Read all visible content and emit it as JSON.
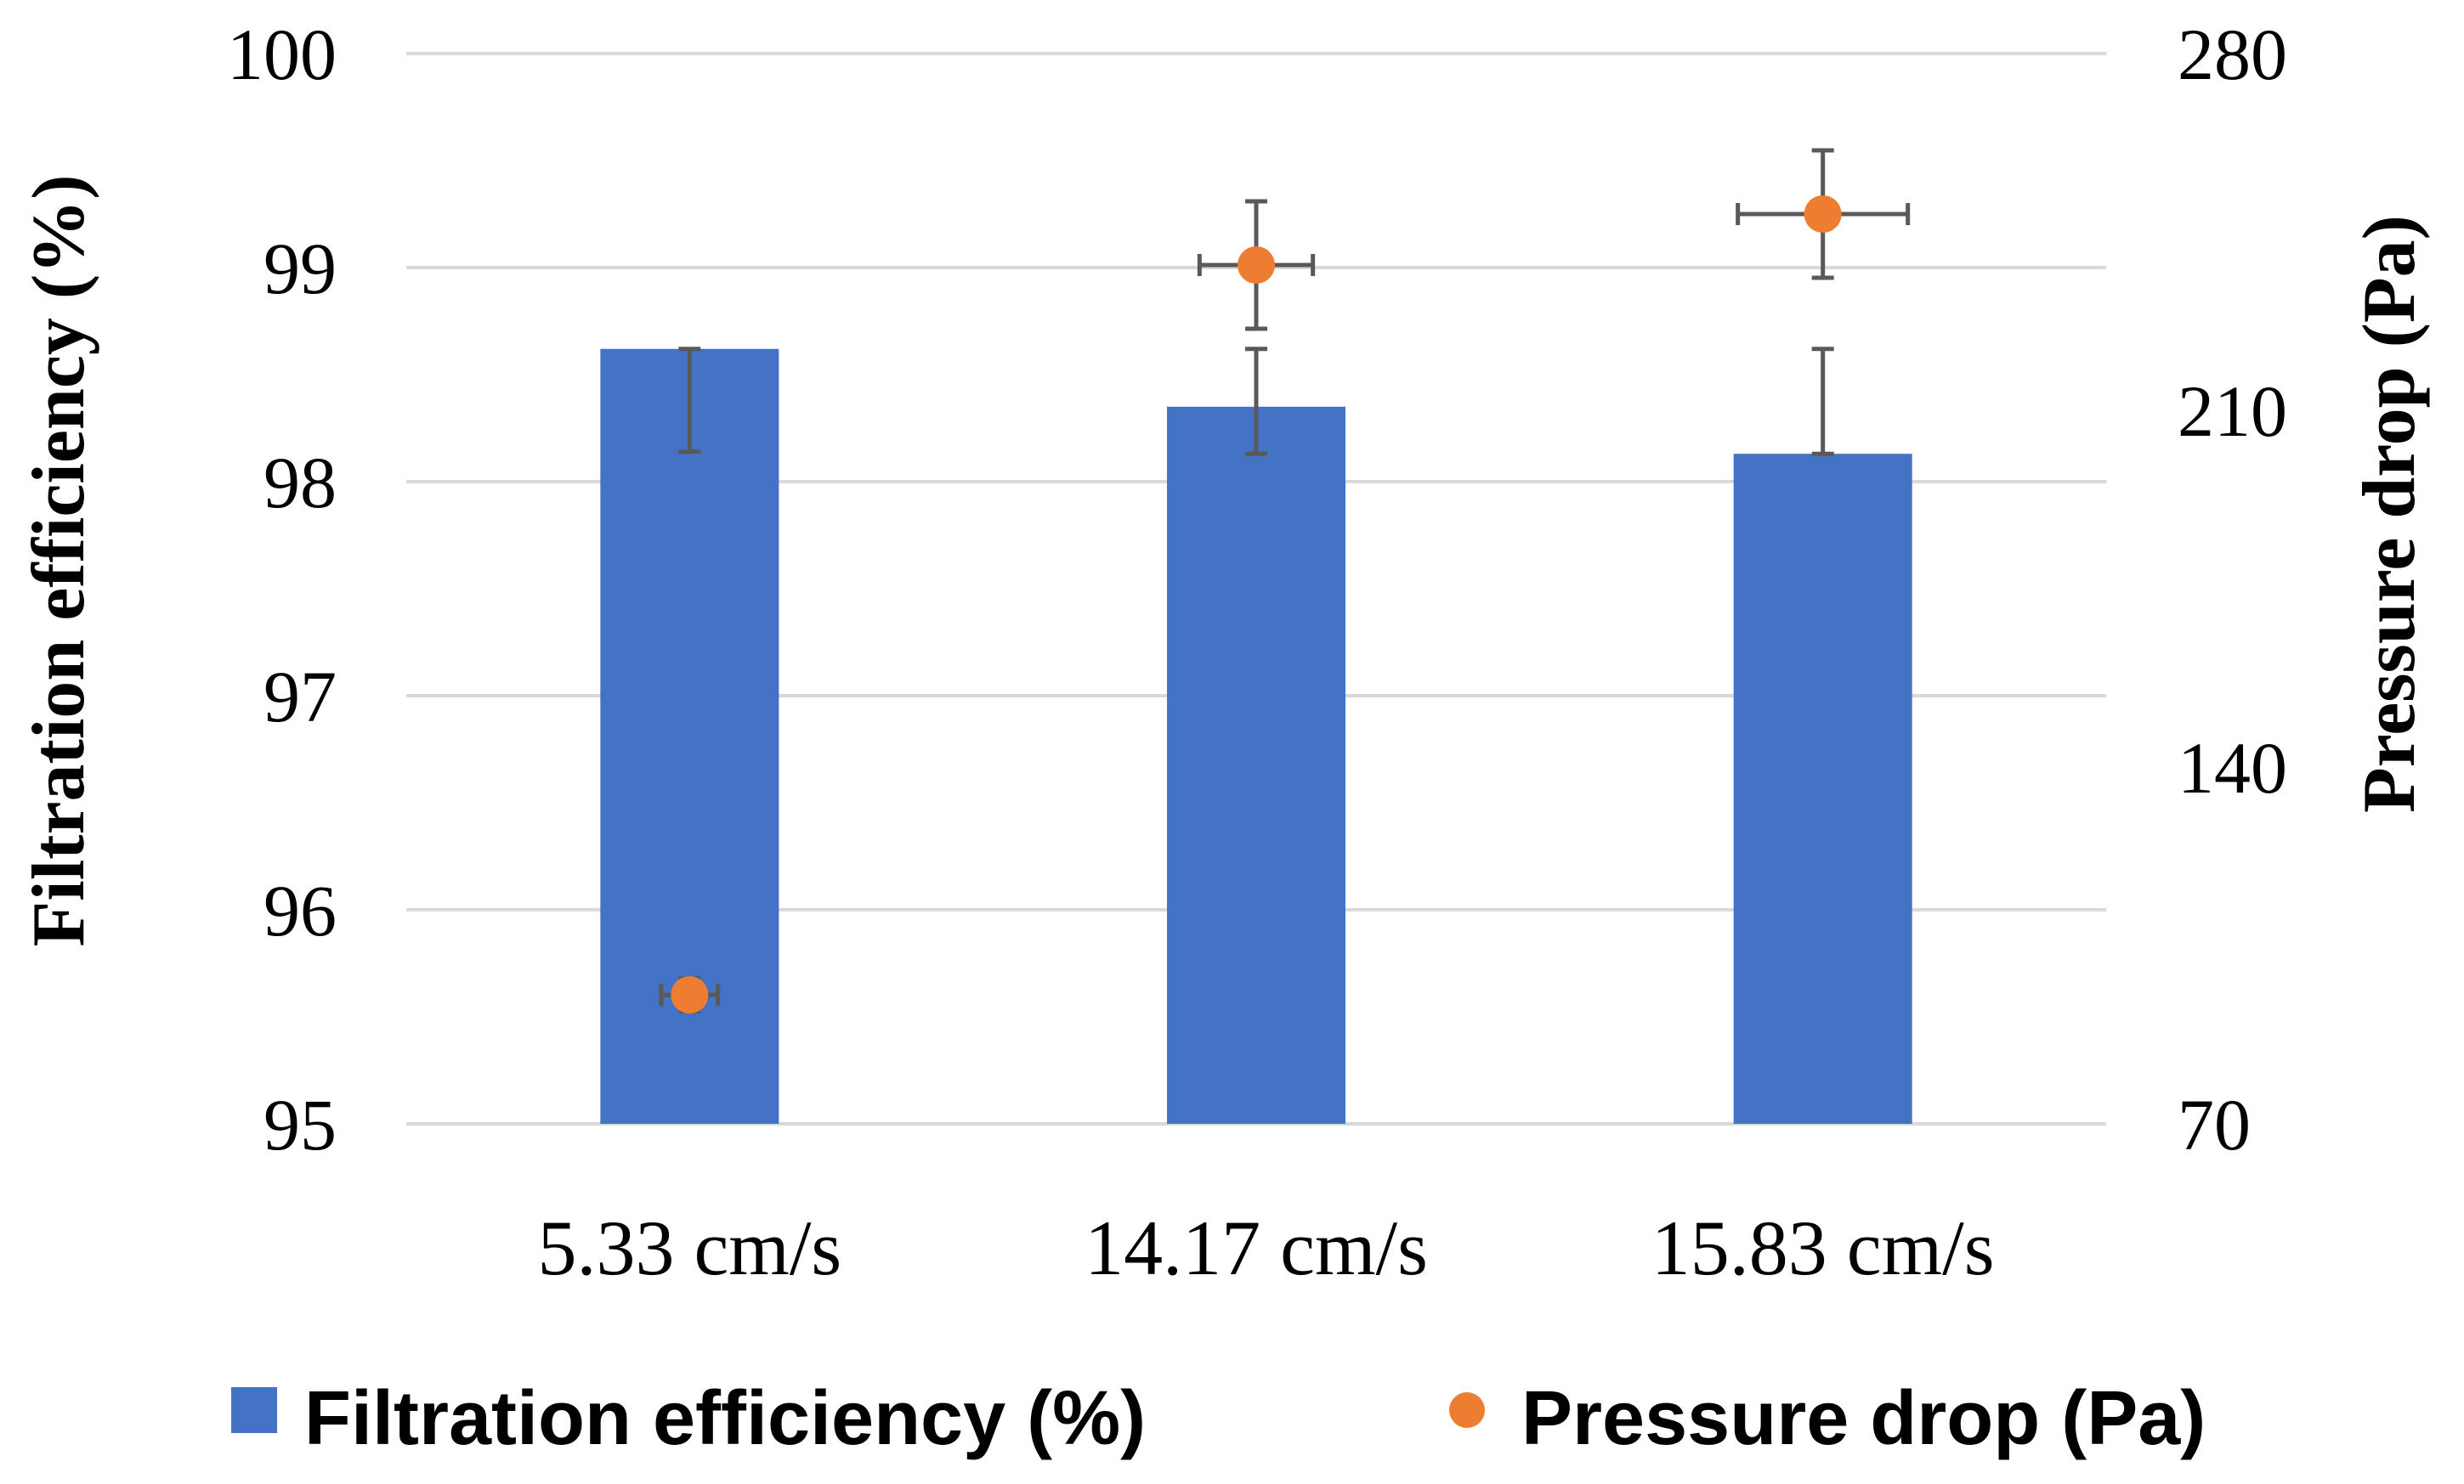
{
  "chart_data": {
    "type": "bar",
    "categories": [
      "5.33 cm/s",
      "14.17 cm/s",
      "15.83 cm/s"
    ],
    "series": [
      {
        "name": "Filtration efficiency (%)",
        "kind": "bar",
        "axis": "left",
        "values": [
          98.62,
          98.35,
          98.13
        ],
        "error_minus": [
          0.48,
          0.22,
          0.0
        ],
        "error_plus": [
          0.0,
          0.27,
          0.49
        ],
        "color": "#4472C4"
      },
      {
        "name": "Pressure drop (Pa)",
        "kind": "scatter",
        "axis": "right",
        "values": [
          95.3,
          238.5,
          248.5
        ],
        "y_error": [
          3.2,
          12.5,
          12.5
        ],
        "x_error": [
          0.05,
          0.1,
          0.15
        ],
        "color": "#ED7D31"
      }
    ],
    "left_axis": {
      "title": "Filtration efficiency (%)",
      "min": 95,
      "max": 100,
      "ticks": [
        "95",
        "96",
        "97",
        "98",
        "99",
        "100"
      ]
    },
    "right_axis": {
      "title": "Pressure drop (Pa)",
      "min": 70,
      "max": 280,
      "ticks": [
        "70",
        "140",
        "210",
        "280"
      ]
    },
    "legend": {
      "placement": "bottom",
      "items": [
        "Filtration efficiency (%)",
        "Pressure drop (Pa)"
      ]
    },
    "grid": true,
    "error_bar_color": "#595959",
    "grid_color": "#D9D9D9"
  }
}
